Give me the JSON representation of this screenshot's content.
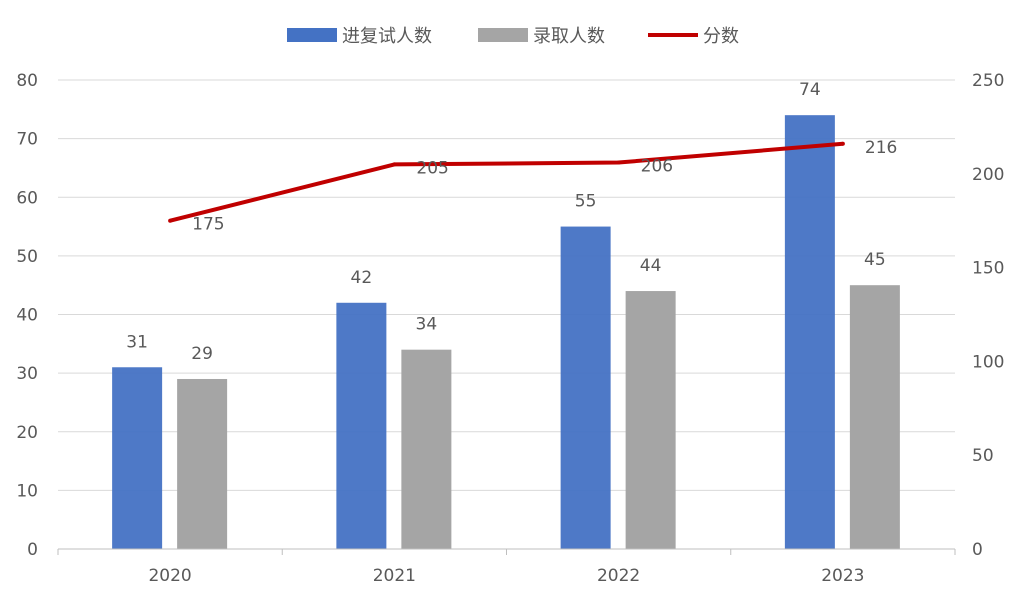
{
  "colors": {
    "bar_invited": "#4472C4",
    "bar_admitted": "#A5A5A5",
    "line_score": "#C00000",
    "grid": "#D9D9D9",
    "axis": "#BFBFBF",
    "text": "#595959"
  },
  "chart_data": {
    "type": "bar",
    "categories": [
      "2020",
      "2021",
      "2022",
      "2023"
    ],
    "series": [
      {
        "name": "进复试人数",
        "kind": "bar",
        "axis": "left",
        "values": [
          31,
          42,
          55,
          74
        ]
      },
      {
        "name": "录取人数",
        "kind": "bar",
        "axis": "left",
        "values": [
          29,
          34,
          44,
          45
        ]
      },
      {
        "name": "分数",
        "kind": "line",
        "axis": "right",
        "values": [
          175,
          205,
          206,
          216
        ]
      }
    ],
    "title": "",
    "xlabel": "",
    "ylabel": "",
    "ylim": [
      0,
      80
    ],
    "yticks": [
      "0",
      "10",
      "20",
      "30",
      "40",
      "50",
      "60",
      "70",
      "80"
    ],
    "y2lim": [
      0,
      250
    ],
    "y2ticks": [
      "0",
      "50",
      "100",
      "150",
      "200",
      "250"
    ],
    "grid": true,
    "legend_position": "top-center"
  }
}
